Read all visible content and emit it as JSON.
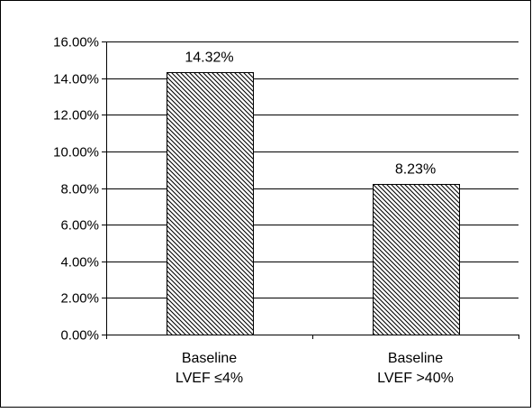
{
  "chart_data": {
    "type": "bar",
    "title": "",
    "xlabel": "",
    "ylabel": "",
    "categories": [
      [
        "Baseline",
        "LVEF ≤4%"
      ],
      [
        "Baseline",
        "LVEF >40%"
      ]
    ],
    "values": [
      14.32,
      8.23
    ],
    "data_labels": [
      "14.32%",
      "8.23%"
    ],
    "ylim": [
      0,
      16
    ],
    "yticks": [
      0,
      2,
      4,
      6,
      8,
      10,
      12,
      14,
      16
    ],
    "ytick_labels": [
      "0.00%",
      "2.00%",
      "4.00%",
      "6.00%",
      "8.00%",
      "10.00%",
      "12.00%",
      "14.00%",
      "16.00%"
    ],
    "grid": true,
    "legend": "none",
    "bar_fill": "diagonal-hatch",
    "colors": {
      "bar_stroke": "#000000",
      "hatch_line": "#000000",
      "hatch_bg": "#ffffff",
      "grid": "#000000",
      "axis": "#000000",
      "frame": "#000000"
    }
  }
}
